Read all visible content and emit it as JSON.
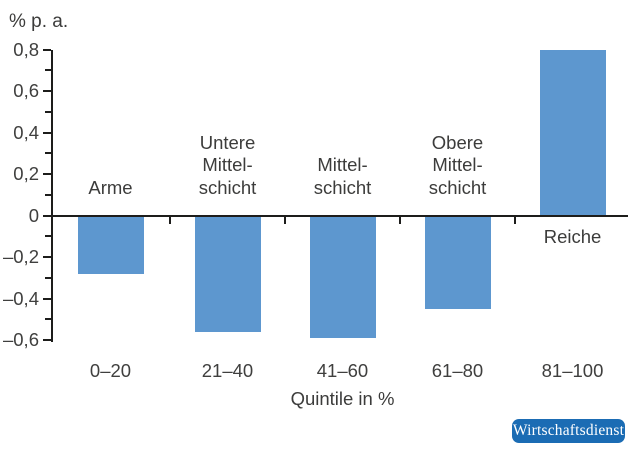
{
  "chart_data": {
    "type": "bar",
    "title": "",
    "ylabel": "% p. a.",
    "xlabel": "Quintile in %",
    "ylim": [
      -0.6,
      0.8
    ],
    "grid": false,
    "legend": null,
    "categories": [
      "0–20",
      "21–40",
      "41–60",
      "61–80",
      "81–100"
    ],
    "values": [
      -0.28,
      -0.56,
      -0.59,
      -0.45,
      0.8
    ],
    "category_annotations": [
      "Arme",
      "Untere\nMittel-\nschicht",
      "Mittel-\nschicht",
      "Obere\nMittel-\nschicht",
      "Reiche"
    ],
    "y_ticks": [
      {
        "value": 0.8,
        "label": "0,8"
      },
      {
        "value": 0.6,
        "label": "0,6"
      },
      {
        "value": 0.4,
        "label": "0,4"
      },
      {
        "value": 0.2,
        "label": "0,2"
      },
      {
        "value": 0,
        "label": "0"
      },
      {
        "value": -0.2,
        "label": "–0,2"
      },
      {
        "value": -0.4,
        "label": "–0,4"
      },
      {
        "value": -0.6,
        "label": "–0,6"
      }
    ],
    "minor_tick_step": 0.1,
    "bar_color": "#5d97cf",
    "axis_color": "#1d1d1b",
    "text_color": "#3c3c3b"
  },
  "brand": {
    "label": "Wirtschaftsdienst",
    "badge_color": "#1b6cb4",
    "text_color": "#ffffff"
  }
}
